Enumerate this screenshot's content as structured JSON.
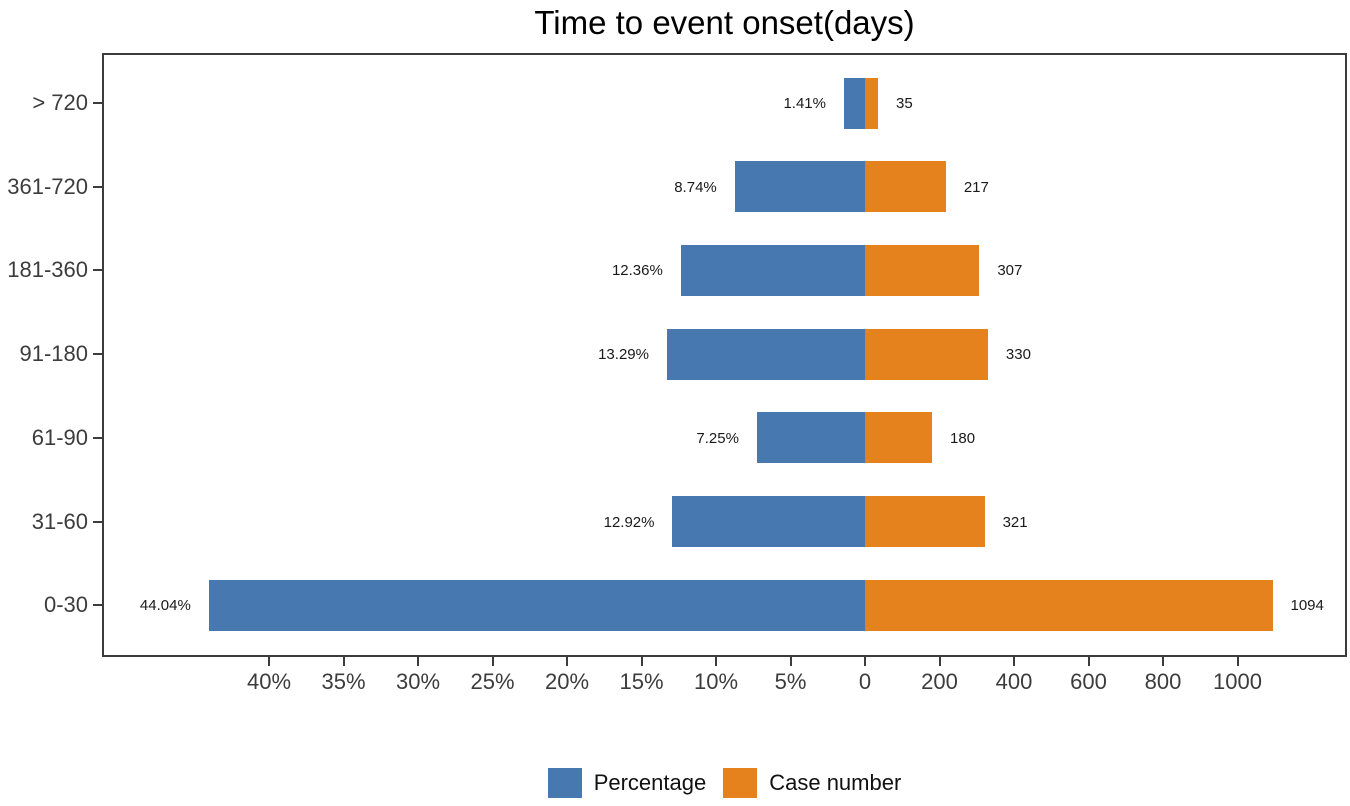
{
  "title": "Time to event onset(days)",
  "legend": [
    {
      "label": "Percentage",
      "color": "#4878B0"
    },
    {
      "label": "Case number",
      "color": "#E5821E"
    }
  ],
  "colors": {
    "percentage_bar": "#4878B0",
    "case_bar": "#E5821E",
    "panel_border": "#3C3C3C",
    "axis_text": "#3C3C3C",
    "value_text": "#1A1A1A"
  },
  "chart_data": {
    "type": "bar",
    "orientation": "horizontal-diverging",
    "title": "Time to event onset(days)",
    "categories": [
      "> 720",
      "361-720",
      "181-360",
      "91-180",
      "61-90",
      "31-60",
      "0-30"
    ],
    "series": [
      {
        "name": "Percentage",
        "direction": "left",
        "unit": "%",
        "color": "#4878B0",
        "values": [
          1.41,
          8.74,
          12.36,
          13.29,
          7.25,
          12.92,
          44.04
        ]
      },
      {
        "name": "Case number",
        "direction": "right",
        "unit": "cases",
        "color": "#E5821E",
        "values": [
          35,
          217,
          307,
          330,
          180,
          321,
          1094
        ]
      }
    ],
    "labels": {
      "pct": [
        "1.41%",
        "8.74%",
        "12.36%",
        "13.29%",
        "7.25%",
        "12.92%",
        "44.04%"
      ],
      "count": [
        "35",
        "217",
        "307",
        "330",
        "180",
        "321",
        "1094"
      ]
    },
    "axis": {
      "pct_tick_values": [
        40,
        35,
        30,
        25,
        20,
        15,
        10,
        5
      ],
      "pct_tick_labels": [
        "40%",
        "35%",
        "30%",
        "25%",
        "20%",
        "15%",
        "10%",
        "5%"
      ],
      "case_tick_values": [
        0,
        200,
        400,
        600,
        800,
        1000
      ],
      "case_tick_labels": [
        "0",
        "200",
        "400",
        "600",
        "800",
        "1000"
      ],
      "pct_axis_max": 51,
      "case_axis_max": 1295,
      "grid": false
    },
    "legend_position": "bottom-center"
  }
}
